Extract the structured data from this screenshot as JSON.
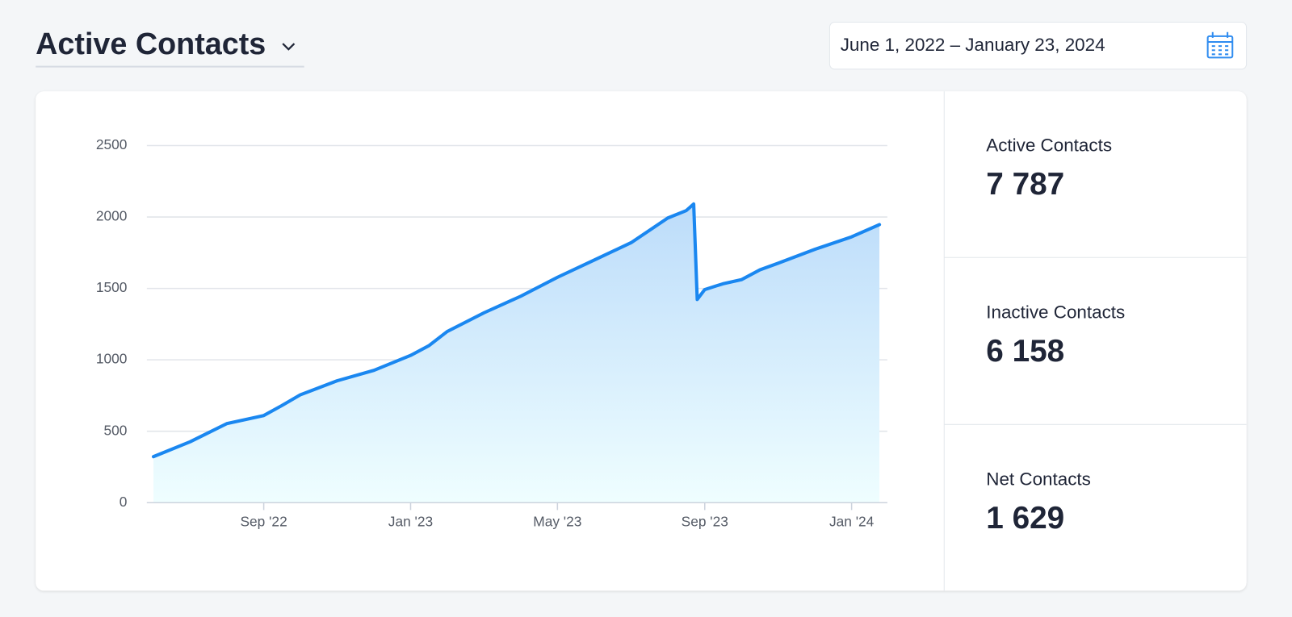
{
  "header": {
    "title": "Active Contacts",
    "date_range": "June 1, 2022 – January 23, 2024"
  },
  "chart_data": {
    "type": "area",
    "x": [
      2022.417,
      2022.5,
      2022.583,
      2022.667,
      2022.708,
      2022.75,
      2022.833,
      2022.917,
      2023.0,
      2023.042,
      2023.083,
      2023.167,
      2023.25,
      2023.333,
      2023.417,
      2023.5,
      2023.583,
      2023.625,
      2023.642,
      2023.65,
      2023.667,
      2023.708,
      2023.75,
      2023.792,
      2023.833,
      2023.917,
      2024.0,
      2024.063
    ],
    "values": [
      322,
      426,
      553,
      610,
      680,
      755,
      853,
      927,
      1031,
      1100,
      1198,
      1330,
      1446,
      1578,
      1700,
      1820,
      1993,
      2045,
      2091,
      1423,
      1492,
      1532,
      1561,
      1630,
      1676,
      1774,
      1861,
      1947
    ],
    "color": "#1a87f0",
    "xlim": [
      2022.402,
      2024.081
    ],
    "xticks": [
      {
        "value": 2022.667,
        "label": "Sep '22"
      },
      {
        "value": 2023.0,
        "label": "Jan '23"
      },
      {
        "value": 2023.333,
        "label": "May '23"
      },
      {
        "value": 2023.667,
        "label": "Sep '23"
      },
      {
        "value": 2024.0,
        "label": "Jan '24"
      }
    ],
    "ylim": [
      0,
      2500
    ],
    "yticks": [
      0,
      500,
      1000,
      1500,
      2000,
      2500
    ],
    "grid": true
  },
  "stats": [
    {
      "label": "Active Contacts",
      "value": "7 787"
    },
    {
      "label": "Inactive Contacts",
      "value": "6 158"
    },
    {
      "label": "Net Contacts",
      "value": "1 629"
    }
  ]
}
